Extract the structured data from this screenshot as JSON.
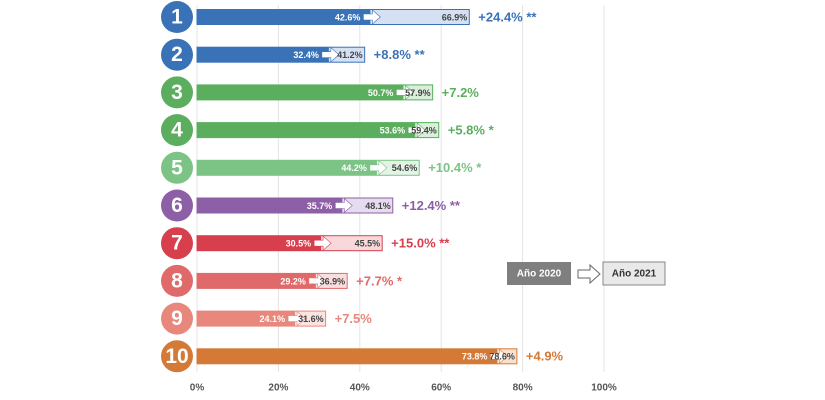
{
  "chart_data": {
    "type": "bar",
    "categories": [
      "1",
      "2",
      "3",
      "4",
      "5",
      "6",
      "7",
      "8",
      "9",
      "10"
    ],
    "series": [
      {
        "name": "Año 2020",
        "color": "#7f7f7f",
        "values": [
          42.6,
          32.4,
          50.7,
          53.6,
          44.2,
          35.7,
          30.5,
          29.2,
          24.1,
          73.8
        ],
        "value_labels": [
          "42.6%",
          "32.4%",
          "50.7%",
          "53.6%",
          "44.2%",
          "35.7%",
          "30.5%",
          "29.2%",
          "24.1%",
          "73.8%"
        ]
      },
      {
        "name": "Año 2021",
        "color": "#e9e9e9",
        "values": [
          66.9,
          41.2,
          57.9,
          59.4,
          54.6,
          48.1,
          45.5,
          36.9,
          31.6,
          78.6
        ],
        "value_labels": [
          "66.9%",
          "41.2%",
          "57.9%",
          "59.4%",
          "54.6%",
          "48.1%",
          "45.5%",
          "36.9%",
          "31.6%",
          "78.6%"
        ]
      }
    ],
    "annotations": [
      "+24.4% **",
      "+8.8% **",
      "+7.2%",
      "+5.8% *",
      "+10.4% *",
      "+12.4% **",
      "+15.0% **",
      "+7.7% *",
      "+7.5%",
      "+4.9%"
    ],
    "colors": [
      "#3a72b8",
      "#3a72b8",
      "#5aae5e",
      "#5aae5e",
      "#7cc486",
      "#8c5fa6",
      "#d83f4d",
      "#e06a6a",
      "#e8877b",
      "#d57a36"
    ],
    "light_colors": [
      "#d5e1f2",
      "#d5e1f2",
      "#d9eedb",
      "#d9eedb",
      "#e3f3e5",
      "#e6dcef",
      "#f8d8db",
      "#f9dede",
      "#fae3e0",
      "#f7e2d2"
    ],
    "xlim": [
      0,
      100
    ],
    "xticks": [
      {
        "value": 0,
        "label": "0%"
      },
      {
        "value": 20,
        "label": "20%"
      },
      {
        "value": 40,
        "label": "40%"
      },
      {
        "value": 60,
        "label": "60%"
      },
      {
        "value": 80,
        "label": "80%"
      },
      {
        "value": 100,
        "label": "100%"
      }
    ],
    "grid": true
  }
}
